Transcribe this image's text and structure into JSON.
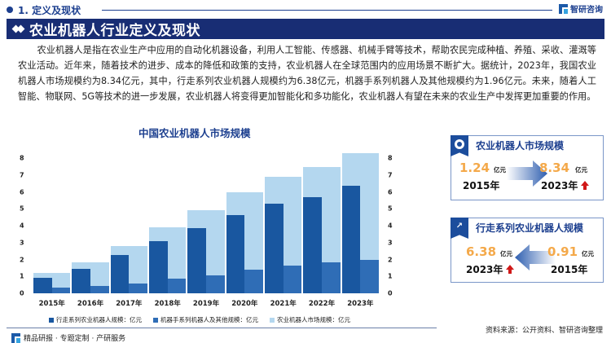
{
  "header": {
    "section_label": "1. 定义及现状",
    "brand": "智研咨询",
    "title": "农业机器人行业定义及现状"
  },
  "description": "农业机器人是指在农业生产中应用的自动化机器设备，利用人工智能、传感器、机械手臂等技术，帮助农民完成种植、养殖、采收、灌溉等农业活动。近年来，随着技术的进步、成本的降低和政策的支持，农业机器人在全球范围内的应用场景不断扩大。据统计，2023年，我国农业机器人市场规模约为8.34亿元，其中，行走系列农业机器人规模约为6.38亿元，机器手系列机器人及其他规模约为1.96亿元。未来，随着人工智能、物联网、5G等技术的进一步发展，农业机器人将变得更加智能化和多功能化，农业机器人有望在未来的农业生产中发挥更加重要的作用。",
  "chart_data": {
    "type": "bar",
    "title": "中国农业机器人市场规模",
    "categories": [
      "2015年",
      "2016年",
      "2017年",
      "2018年",
      "2019年",
      "2020年",
      "2021年",
      "2022年",
      "2023年"
    ],
    "series": [
      {
        "name": "行走系列农业机器人规模：亿元",
        "color": "#1957a0",
        "values": [
          0.91,
          1.45,
          2.25,
          3.1,
          3.88,
          4.65,
          5.3,
          5.7,
          6.38
        ]
      },
      {
        "name": "机器手系列机器人及其他规模：亿元",
        "color": "#2f6db6",
        "values": [
          0.33,
          0.45,
          0.6,
          0.85,
          1.08,
          1.38,
          1.65,
          1.82,
          1.96
        ]
      },
      {
        "name": "农业机器人市场规模：亿元",
        "color": "#b4d7ef",
        "values": [
          1.24,
          1.9,
          2.85,
          3.95,
          4.96,
          6.03,
          6.95,
          7.52,
          8.34
        ]
      }
    ],
    "xlabel": "",
    "ylabel": "",
    "ylim": [
      0,
      8
    ],
    "yticks": [
      0,
      1,
      2,
      3,
      4,
      5,
      6,
      7,
      8
    ],
    "y_axes": [
      "left",
      "right"
    ],
    "grid": false,
    "legend_position": "bottom"
  },
  "kpi_cards": [
    {
      "title": "农业机器人市场规模",
      "icon": "pie-chart-icon",
      "from_value": "1.24",
      "from_unit": "亿元",
      "from_year": "2015年",
      "to_value": "8.34",
      "to_unit": "亿元",
      "to_year": "2023年"
    },
    {
      "title": "行走系列农业机器人规模",
      "icon": "growth-chart-icon",
      "from_value": "0.91",
      "from_unit": "亿元",
      "from_year": "2015年",
      "to_value": "6.38",
      "to_unit": "亿元",
      "to_year": "2023年"
    }
  ],
  "footer": {
    "source": "资料来源：公开资料、智研咨询整理",
    "tagline": "精品研报 · 专题定制 · 产研服务"
  }
}
